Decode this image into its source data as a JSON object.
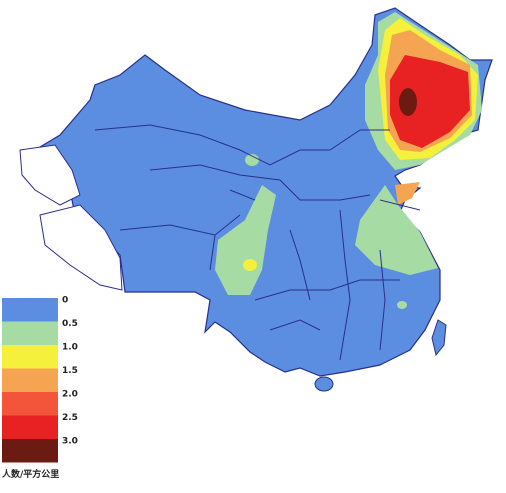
{
  "legend": {
    "items": [
      {
        "label": "0",
        "color": "#5b8ee0"
      },
      {
        "label": "0.5",
        "color": "#a6dba4"
      },
      {
        "label": "1.0",
        "color": "#f5f03c"
      },
      {
        "label": "1.5",
        "color": "#f5a552"
      },
      {
        "label": "2.0",
        "color": "#f2553a"
      },
      {
        "label": "2.5",
        "color": "#e82222"
      },
      {
        "label": "3.0",
        "color": "#6b1b12"
      }
    ],
    "caption": "人数/平方公里"
  }
}
